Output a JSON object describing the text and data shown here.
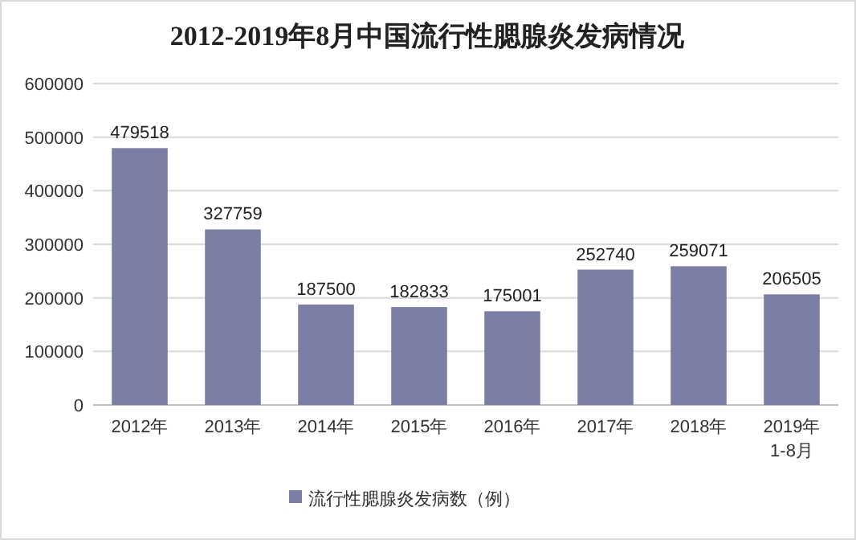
{
  "chart_data": {
    "type": "bar",
    "title": "2012-2019年8月中国流行性腮腺炎发病情况",
    "categories": [
      "2012年",
      "2013年",
      "2014年",
      "2015年",
      "2016年",
      "2017年",
      "2018年",
      "2019年\n1-8月"
    ],
    "series": [
      {
        "name": "流行性腮腺炎发病数（例）",
        "color": "#7b7fa6",
        "values": [
          479518,
          327759,
          187500,
          182833,
          175001,
          252740,
          259071,
          206505
        ]
      }
    ],
    "ylim": [
      0,
      600000
    ],
    "yticks": [
      0,
      100000,
      200000,
      300000,
      400000,
      500000,
      600000
    ],
    "grid": "y",
    "legend": "bottom",
    "data_labels": true
  }
}
